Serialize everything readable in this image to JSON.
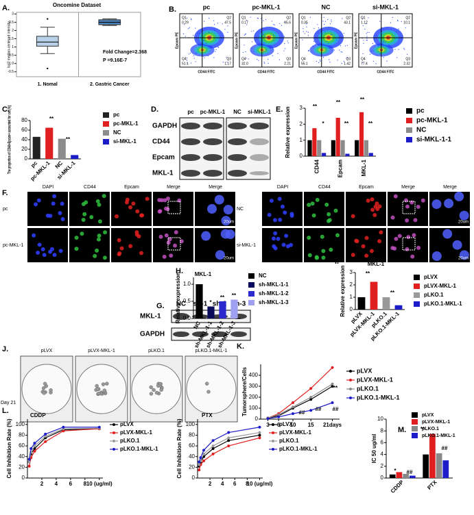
{
  "panels": {
    "B": {
      "label": "B.",
      "y_axis": "Epcam PE",
      "x_axis": "CD44 FITC",
      "quadrants": [
        "Q1",
        "Q2",
        "Q3",
        "Q4"
      ],
      "plots": [
        {
          "title": "pc",
          "values": [
            "0.29",
            "47.5",
            "1.17",
            "51.1"
          ]
        },
        {
          "title": "pc-MKL-1",
          "values": [
            "0.17",
            "65.6",
            "2.21",
            "32.0"
          ]
        },
        {
          "title": "NC",
          "values": [
            "0.35",
            "43.1",
            "1.42",
            "55.1"
          ]
        },
        {
          "title": "si-MKL-1",
          "values": [
            "1.12",
            "10.1",
            "2.32",
            "77.4"
          ]
        }
      ]
    },
    "D": {
      "label": "D.",
      "lanes": [
        "pc",
        "pc-MKL-1",
        "NC",
        "si-MKL-1"
      ],
      "rows": [
        "GAPDH",
        "CD44",
        "Epcam",
        "MKL-1"
      ]
    },
    "F": {
      "label": "F.",
      "columns": [
        "DAPI",
        "CD44",
        "Epcam",
        "Merge",
        "Merge"
      ],
      "rows_left": [
        "pc",
        "pc-MKL-1"
      ],
      "rows_right": [
        "NC",
        "si-MKL-1"
      ],
      "scale": "20um"
    },
    "G": {
      "label": "G.",
      "lanes": [
        "NC",
        "sh-1",
        "sh-2",
        "sh-3"
      ],
      "rows": [
        "MKL-1",
        "GAPDH"
      ]
    },
    "J": {
      "label": "J.",
      "titles": [
        "pLVX",
        "pLVX-MKL-1",
        "pLKO.1",
        "pLKO.1-MKL-1"
      ],
      "day": "Day 21"
    }
  },
  "chart_data": [
    {
      "type": "box",
      "panel": "A.",
      "title": "Oncomine Dataset",
      "ylabel": "log2 median-centered intensity",
      "categories": [
        "1. Nomal",
        "2. Gastric Cancer"
      ],
      "boxes": [
        {
          "whisker_low": 0.6,
          "q1": 1.05,
          "median": 1.3,
          "q3": 1.65,
          "whisker_high": 2.2,
          "color": "#b8d0e6"
        },
        {
          "whisker_low": 2.3,
          "q1": 2.35,
          "median": 2.5,
          "q3": 2.65,
          "whisker_high": 2.7,
          "color": "#4a7fb5"
        }
      ],
      "outliers": [
        [
          2.7,
          -0.3
        ],
        []
      ],
      "ylim": [
        -0.8,
        3.1
      ],
      "yticks": [
        -0.5,
        0,
        0.5,
        1,
        1.5,
        2,
        2.5,
        3
      ],
      "annotations": [
        "Fold Change=2.368",
        "P =9.16E-7"
      ]
    },
    {
      "type": "bar",
      "panel": "C.",
      "ylabel": "The proportion of CD44+Epcam+ accounted for cell (%)",
      "categories": [
        "pc",
        "pc-MKL-1",
        "NC",
        "si-MKL-1"
      ],
      "values": [
        46,
        65,
        42,
        8
      ],
      "colors": [
        "#222222",
        "#e02020",
        "#8c8c8c",
        "#1c1cc8"
      ],
      "ylim": [
        0,
        80
      ],
      "yticks": [
        0,
        20,
        40,
        60,
        80
      ],
      "legend": true,
      "annotations": [
        "**",
        "**"
      ]
    },
    {
      "type": "bar",
      "panel": "E.",
      "ylabel": "Relative expression",
      "categories": [
        "CD44",
        "Epcam",
        "MKL-1"
      ],
      "series": [
        {
          "name": "pc",
          "color": "#000000",
          "values": [
            1,
            1,
            1
          ]
        },
        {
          "name": "pc-MKL-1",
          "color": "#e02020",
          "values": [
            1.75,
            2.4,
            2.75
          ]
        },
        {
          "name": "NC",
          "color": "#8c8c8c",
          "values": [
            1,
            1,
            1
          ]
        },
        {
          "name": "si-MKL-1-1",
          "color": "#1c1cc8",
          "values": [
            0.2,
            0.15,
            0.2
          ]
        }
      ],
      "ylim": [
        0,
        3
      ],
      "yticks": [
        0,
        1,
        2,
        3
      ],
      "legend": true,
      "annotations": [
        "**",
        "*",
        "**",
        "**",
        "**",
        "**"
      ]
    },
    {
      "type": "bar",
      "panel": "H.",
      "title": "MKL-1",
      "ylabel": "Relative expression",
      "categories": [
        "NC",
        "sh-MKL-1-1",
        "sh-MKL-1-2",
        "sh-MKL-1-3"
      ],
      "values": [
        1,
        0.35,
        0.5,
        0.55
      ],
      "colors": [
        "#000000",
        "#0a0a5a",
        "#2a2ad0",
        "#a0a0f0"
      ],
      "ylim": [
        0,
        1.2
      ],
      "yticks": [
        {
          "value": 0,
          "label": "0.0"
        },
        {
          "value": 0.5,
          "label": "0.5"
        },
        {
          "value": 1,
          "label": "1.0"
        }
      ],
      "legend": true,
      "annotations": [
        "*",
        "**",
        "**"
      ]
    },
    {
      "type": "bar",
      "panel": "I.",
      "title": "MKL-1",
      "ylabel": "Relative expression",
      "categories": [
        "pLVX",
        "pLVX-MKL-1",
        "pLKO.1",
        "pLKO.1-MKL-1"
      ],
      "values": [
        1,
        2.25,
        1,
        0.35
      ],
      "colors": [
        "#000000",
        "#e02020",
        "#999999",
        "#1c1cc8"
      ],
      "ylim": [
        0,
        3
      ],
      "yticks": [
        0,
        1,
        2,
        3
      ],
      "legend": true,
      "annotations": [
        "**",
        "**"
      ]
    },
    {
      "type": "line",
      "panel": "K.",
      "ylabel": "Tumorsphere/Cells",
      "x": [
        3,
        6,
        10,
        15,
        21
      ],
      "xlim": [
        1,
        23
      ],
      "xticks": [
        3,
        6,
        10,
        15,
        {
          "value": 21,
          "label": "21days"
        }
      ],
      "series": [
        {
          "name": "pLVX",
          "color": "#000000",
          "values": [
            10,
            30,
            100,
            180,
            300
          ]
        },
        {
          "name": "pLVX-MKL-1",
          "color": "#e02020",
          "values": [
            10,
            50,
            150,
            280,
            470
          ]
        },
        {
          "name": "pLKO.1",
          "color": "#888888",
          "values": [
            10,
            40,
            110,
            200,
            320
          ]
        },
        {
          "name": "pLKO.1-MKL-1",
          "color": "#1c1cc8",
          "values": [
            5,
            20,
            50,
            80,
            150
          ]
        }
      ],
      "ylim": [
        0,
        500
      ],
      "yticks": [
        0,
        100,
        200,
        300,
        400
      ],
      "legend": true,
      "annotations": [
        "**",
        "##",
        "##",
        "##"
      ]
    },
    {
      "type": "line",
      "panel": "L.",
      "title": "CDDP",
      "ylabel": "Cell Inhibition Rate (%)",
      "x": [
        0.25,
        0.5,
        1,
        2.5,
        5,
        10
      ],
      "xlim": [
        0,
        10.5
      ],
      "xticks": [
        2,
        4,
        6,
        8,
        {
          "value": 10,
          "label": "10 (ug/ml)"
        }
      ],
      "series": [
        {
          "name": "pLVX",
          "color": "#000000",
          "values": [
            30,
            45,
            55,
            75,
            90,
            92
          ]
        },
        {
          "name": "pLVX-MKL-1",
          "color": "#e02020",
          "values": [
            22,
            38,
            50,
            68,
            88,
            92
          ]
        },
        {
          "name": "pLKO.1",
          "color": "#999999",
          "values": [
            30,
            48,
            60,
            78,
            92,
            93
          ]
        },
        {
          "name": "pLKO.1-MKL-1",
          "color": "#1c1cc8",
          "values": [
            35,
            55,
            65,
            82,
            95,
            95
          ]
        }
      ],
      "ylim": [
        0,
        110
      ],
      "yticks": [
        0,
        20,
        40,
        60,
        80,
        100
      ],
      "legend": true
    },
    {
      "type": "line",
      "title": "PTX",
      "ylabel": "Cell Inhibition Rate (%)",
      "x": [
        0.25,
        0.5,
        1,
        2.5,
        5,
        10
      ],
      "xlim": [
        0,
        10.5
      ],
      "xticks": [
        2,
        4,
        6,
        8,
        {
          "value": 10,
          "label": "10 (ug/ml)"
        }
      ],
      "series": [
        {
          "name": "pLVX",
          "color": "#000000",
          "values": [
            22,
            30,
            40,
            55,
            70,
            80
          ]
        },
        {
          "name": "pLVX-MKL-1",
          "color": "#e02020",
          "values": [
            15,
            25,
            32,
            45,
            60,
            75
          ]
        },
        {
          "name": "pLKO.1",
          "color": "#999999",
          "values": [
            25,
            32,
            45,
            60,
            75,
            85
          ]
        },
        {
          "name": "pLKO.1-MKL-1",
          "color": "#1c1cc8",
          "values": [
            30,
            38,
            52,
            70,
            85,
            95
          ]
        }
      ],
      "ylim": [
        0,
        110
      ],
      "yticks": [
        0,
        20,
        40,
        60,
        80,
        100
      ],
      "legend": true
    },
    {
      "type": "bar",
      "panel": "M.",
      "ylabel": "IC 50 ug/ml",
      "categories": [
        "CDDP",
        "PTX"
      ],
      "series": [
        {
          "name": "pLVX",
          "color": "#000000",
          "values": [
            0.6,
            4
          ]
        },
        {
          "name": "pLVX-MKL-1",
          "color": "#e02020",
          "values": [
            1,
            7.5
          ]
        },
        {
          "name": "pLKO.1",
          "color": "#888888",
          "values": [
            0.7,
            4.2
          ]
        },
        {
          "name": "pLKO.1-MKL-1",
          "color": "#1c1cc8",
          "values": [
            0.4,
            3
          ]
        }
      ],
      "ylim": [
        0,
        10
      ],
      "yticks": [
        0,
        2,
        4,
        6,
        8,
        10
      ],
      "legend": true,
      "annotations": [
        "*",
        "##",
        "**",
        "##"
      ]
    }
  ]
}
